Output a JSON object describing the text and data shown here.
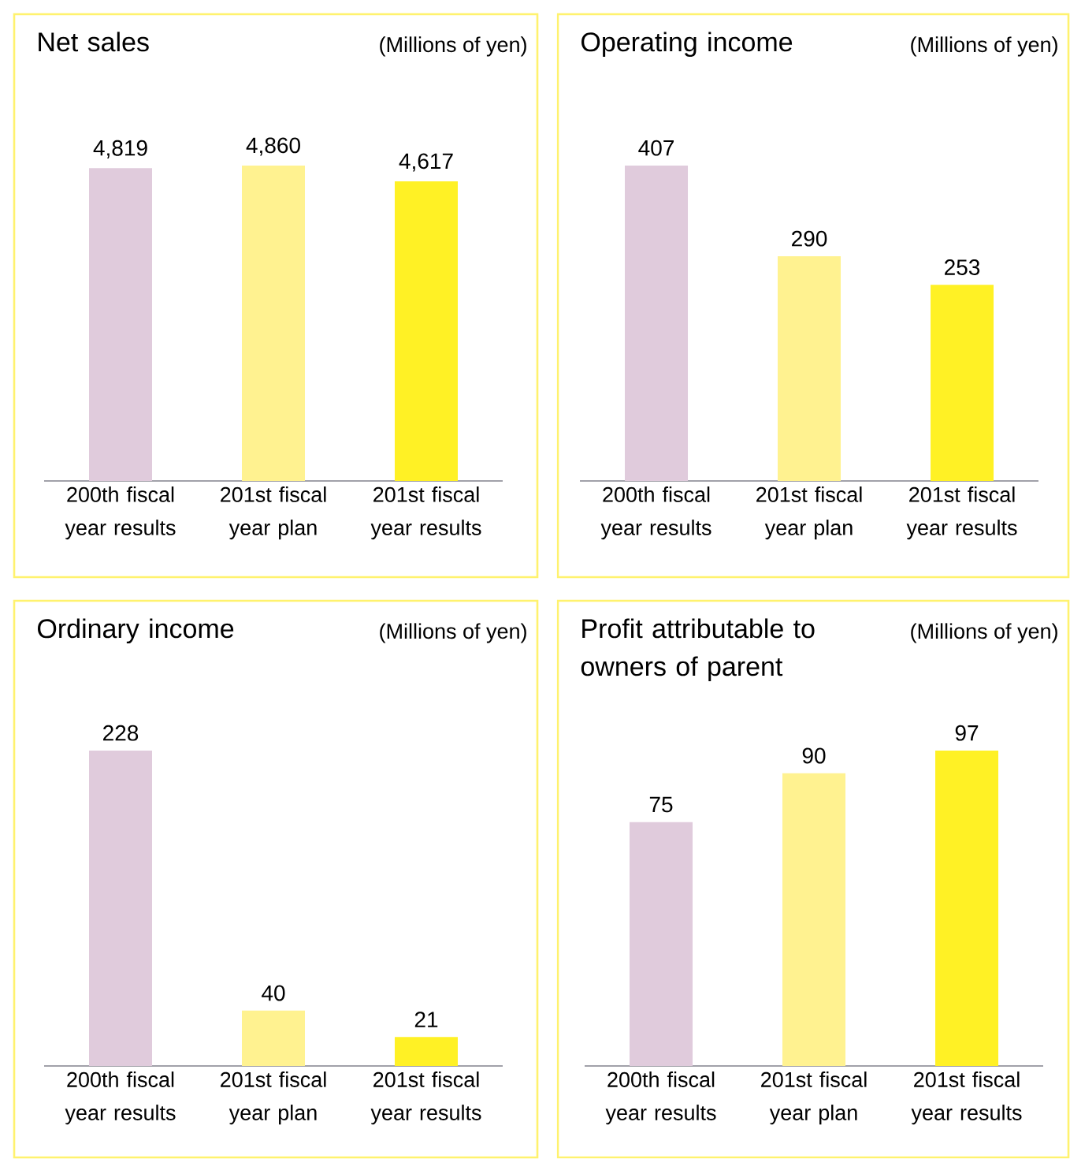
{
  "chart_data": [
    {
      "type": "bar",
      "title": "Net sales",
      "subtitle": "(Millions of yen)",
      "categories": [
        "200th fiscal year results",
        "201st fiscal year plan",
        "201st fiscal year results"
      ],
      "values": [
        4819,
        4860,
        4617
      ],
      "value_labels": [
        "4,819",
        "4,860",
        "4,617"
      ],
      "colors": [
        "#e0cbdc",
        "#fff290",
        "#fff125"
      ]
    },
    {
      "type": "bar",
      "title": "Operating income",
      "subtitle": "(Millions of yen)",
      "categories": [
        "200th fiscal year results",
        "201st fiscal year plan",
        "201st fiscal year results"
      ],
      "values": [
        407,
        290,
        253
      ],
      "value_labels": [
        "407",
        "290",
        "253"
      ],
      "colors": [
        "#e0cbdc",
        "#fff290",
        "#fff125"
      ]
    },
    {
      "type": "bar",
      "title": "Ordinary income",
      "subtitle": "(Millions of yen)",
      "categories": [
        "200th fiscal year results",
        "201st fiscal year plan",
        "201st fiscal year results"
      ],
      "values": [
        228,
        40,
        21
      ],
      "value_labels": [
        "228",
        "40",
        "21"
      ],
      "colors": [
        "#e0cbdc",
        "#fff290",
        "#fff125"
      ]
    },
    {
      "type": "bar",
      "title": "Profit attributable to owners of parent",
      "subtitle": "(Millions of yen)",
      "categories": [
        "200th fiscal year results",
        "201st fiscal year plan",
        "201st fiscal year results"
      ],
      "values": [
        75,
        90,
        97
      ],
      "value_labels": [
        "75",
        "90",
        "97"
      ],
      "colors": [
        "#e0cbdc",
        "#fff290",
        "#fff125"
      ]
    }
  ]
}
